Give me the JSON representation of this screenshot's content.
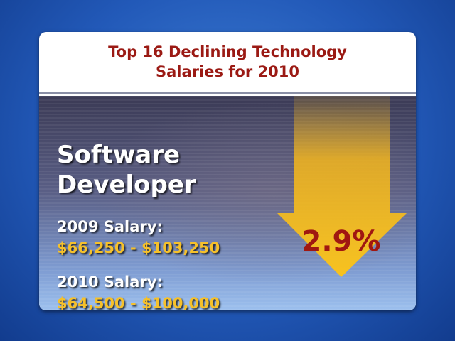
{
  "header": {
    "title": "Top 16 Declining Technology Salaries for 2010"
  },
  "job": {
    "title": "Software Developer"
  },
  "salaries": [
    {
      "label": "2009 Salary:",
      "range": "$66,250 - $103,250"
    },
    {
      "label": "2010 Salary:",
      "range": "$64,500 - $100,000"
    }
  ],
  "change": {
    "label": "2.9%"
  }
}
